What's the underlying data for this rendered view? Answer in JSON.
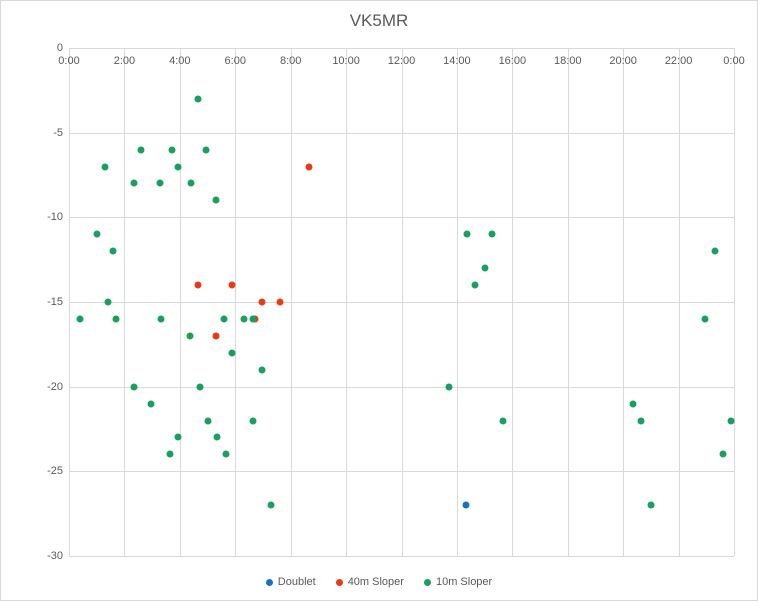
{
  "title": "VK5MR",
  "colors": {
    "doublet": "#1673c2",
    "sloper40": "#ea3a14",
    "sloper10": "#18a05c",
    "grid": "#d9d9d9",
    "axis_text": "#595959"
  },
  "legend": {
    "items": [
      {
        "label": "Doublet",
        "series": "Doublet"
      },
      {
        "label": "40m Sloper",
        "series": "40m Sloper"
      },
      {
        "label": "10m Sloper",
        "series": "10m Sloper"
      }
    ]
  },
  "chart_data": {
    "type": "scatter",
    "title": "VK5MR",
    "xlabel": "",
    "ylabel": "",
    "x_unit": "hours (time of day)",
    "x_ticks": [
      "0:00",
      "2:00",
      "4:00",
      "6:00",
      "8:00",
      "10:00",
      "12:00",
      "14:00",
      "16:00",
      "18:00",
      "20:00",
      "22:00",
      "0:00"
    ],
    "x_range_hours": [
      0,
      24
    ],
    "y_ticks": [
      "0",
      "-5",
      "-10",
      "-15",
      "-20",
      "-25",
      "-30"
    ],
    "y_range": [
      0,
      -30
    ],
    "grid": true,
    "legend_position": "bottom",
    "series": [
      {
        "name": "Doublet",
        "color": "#1673c2",
        "points": [
          [
            14.33,
            -27
          ]
        ]
      },
      {
        "name": "40m Sloper",
        "color": "#ea3a14",
        "points": [
          [
            8.65,
            -7
          ],
          [
            4.65,
            -14
          ],
          [
            5.9,
            -14
          ],
          [
            6.95,
            -15
          ],
          [
            7.6,
            -15
          ],
          [
            6.7,
            -16
          ],
          [
            5.3,
            -17
          ]
        ]
      },
      {
        "name": "10m Sloper",
        "color": "#18a05c",
        "points": [
          [
            4.65,
            -3
          ],
          [
            2.6,
            -6
          ],
          [
            3.7,
            -6
          ],
          [
            4.95,
            -6
          ],
          [
            1.3,
            -7
          ],
          [
            3.95,
            -7
          ],
          [
            2.33,
            -8
          ],
          [
            3.3,
            -8
          ],
          [
            4.4,
            -8
          ],
          [
            5.3,
            -9
          ],
          [
            1.0,
            -11
          ],
          [
            14.35,
            -11
          ],
          [
            15.25,
            -11
          ],
          [
            1.6,
            -12
          ],
          [
            23.3,
            -12
          ],
          [
            15.0,
            -13
          ],
          [
            14.65,
            -14
          ],
          [
            1.4,
            -15
          ],
          [
            0.38,
            -16
          ],
          [
            1.7,
            -16
          ],
          [
            3.33,
            -16
          ],
          [
            5.6,
            -16
          ],
          [
            6.33,
            -16
          ],
          [
            6.63,
            -16
          ],
          [
            22.95,
            -16
          ],
          [
            4.35,
            -17
          ],
          [
            5.9,
            -18
          ],
          [
            6.95,
            -19
          ],
          [
            2.33,
            -20
          ],
          [
            4.72,
            -20
          ],
          [
            13.7,
            -20
          ],
          [
            2.95,
            -21
          ],
          [
            20.35,
            -21
          ],
          [
            5.0,
            -22
          ],
          [
            6.65,
            -22
          ],
          [
            15.65,
            -22
          ],
          [
            20.65,
            -22
          ],
          [
            23.9,
            -22
          ],
          [
            3.93,
            -23
          ],
          [
            5.33,
            -23
          ],
          [
            3.63,
            -24
          ],
          [
            5.65,
            -24
          ],
          [
            23.6,
            -24
          ],
          [
            7.3,
            -27
          ],
          [
            21.0,
            -27
          ]
        ]
      }
    ]
  }
}
